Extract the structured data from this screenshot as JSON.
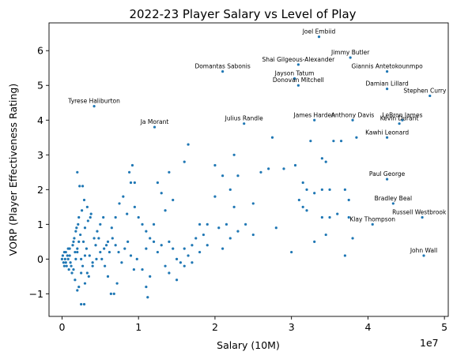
{
  "chart_data": {
    "type": "scatter",
    "title": "2022-23 Player Salary vs Level of Play",
    "xlabel": "Salary (10M)",
    "ylabel": "VORP (Player Effectiveness Rating)",
    "x_offset_text": "1e7",
    "xlim": [
      -1700000,
      50500000
    ],
    "ylim": [
      -1.65,
      6.8
    ],
    "xticks": [
      0,
      10000000,
      20000000,
      30000000,
      40000000,
      50000000
    ],
    "xtick_labels": [
      "0",
      "1",
      "2",
      "3",
      "4",
      "5"
    ],
    "yticks": [
      -1,
      0,
      1,
      2,
      3,
      4,
      5,
      6
    ],
    "ytick_labels": [
      "−1",
      "0",
      "1",
      "2",
      "3",
      "4",
      "5",
      "6"
    ],
    "grid": false,
    "point_color": "#1f77b4",
    "annotated_points": [
      {
        "label": "Joel Embiid",
        "x": 33600000,
        "y": 6.4
      },
      {
        "label": "Jimmy Butler",
        "x": 37700000,
        "y": 5.8
      },
      {
        "label": "Shai Gilgeous-Alexander",
        "x": 30900000,
        "y": 5.6
      },
      {
        "label": "Giannis Antetokounmpo",
        "x": 42500000,
        "y": 5.4
      },
      {
        "label": "Domantas Sabonis",
        "x": 21000000,
        "y": 5.4
      },
      {
        "label": "Jayson Tatum",
        "x": 30400000,
        "y": 5.2
      },
      {
        "label": "Donovan Mitchell",
        "x": 30900000,
        "y": 5.0
      },
      {
        "label": "Damian Lillard",
        "x": 42500000,
        "y": 4.9
      },
      {
        "label": "Stephen Curry",
        "x": 48100000,
        "y": 4.7
      },
      {
        "label": "Tyrese Haliburton",
        "x": 4200000,
        "y": 4.4
      },
      {
        "label": "James Harden",
        "x": 33000000,
        "y": 4.0
      },
      {
        "label": "Anthony Davis",
        "x": 38000000,
        "y": 4.0
      },
      {
        "label": "LeBron James",
        "x": 44500000,
        "y": 4.0
      },
      {
        "label": "Kevin Durant",
        "x": 44100000,
        "y": 3.9
      },
      {
        "label": "Julius Randle",
        "x": 23800000,
        "y": 3.9
      },
      {
        "label": "Ja Morant",
        "x": 12100000,
        "y": 3.8
      },
      {
        "label": "Kawhi Leonard",
        "x": 42500000,
        "y": 3.5
      },
      {
        "label": "Paul George",
        "x": 42500000,
        "y": 2.3
      },
      {
        "label": "Bradley Beal",
        "x": 43300000,
        "y": 1.6
      },
      {
        "label": "Russell Westbrook",
        "x": 47100000,
        "y": 1.2
      },
      {
        "label": "Klay Thompson",
        "x": 40600000,
        "y": 1.0
      },
      {
        "label": "John Wall",
        "x": 47300000,
        "y": 0.1
      }
    ],
    "points": [
      [
        16500000,
        3.3
      ],
      [
        27500000,
        3.5
      ],
      [
        32500000,
        3.4
      ],
      [
        34000000,
        2.9
      ],
      [
        34500000,
        2.8
      ],
      [
        35500000,
        3.4
      ],
      [
        36500000,
        3.4
      ],
      [
        38500000,
        3.5
      ],
      [
        26000000,
        2.5
      ],
      [
        27000000,
        2.6
      ],
      [
        29000000,
        2.6
      ],
      [
        30500000,
        2.7
      ],
      [
        31500000,
        2.2
      ],
      [
        32000000,
        2.0
      ],
      [
        33000000,
        1.9
      ],
      [
        34000000,
        2.0
      ],
      [
        35000000,
        2.0
      ],
      [
        37000000,
        2.0
      ],
      [
        37500000,
        1.7
      ],
      [
        31000000,
        1.7
      ],
      [
        31500000,
        1.5
      ],
      [
        32000000,
        1.4
      ],
      [
        34000000,
        1.2
      ],
      [
        35000000,
        1.2
      ],
      [
        36000000,
        1.3
      ],
      [
        37500000,
        1.2
      ],
      [
        38000000,
        0.6
      ],
      [
        33000000,
        0.5
      ],
      [
        34500000,
        0.7
      ],
      [
        37000000,
        0.1
      ],
      [
        30000000,
        0.2
      ],
      [
        28000000,
        0.9
      ],
      [
        25000000,
        1.6
      ],
      [
        20000000,
        2.7
      ],
      [
        21000000,
        2.4
      ],
      [
        22000000,
        2.0
      ],
      [
        20000000,
        1.8
      ],
      [
        21500000,
        1.0
      ],
      [
        22500000,
        1.5
      ],
      [
        19000000,
        1.0
      ],
      [
        20500000,
        0.9
      ],
      [
        18000000,
        1.0
      ],
      [
        18500000,
        0.7
      ],
      [
        17500000,
        0.6
      ],
      [
        17000000,
        0.4
      ],
      [
        16000000,
        0.3
      ],
      [
        16500000,
        0.1
      ],
      [
        15500000,
        -0.1
      ],
      [
        15000000,
        0.0
      ],
      [
        14500000,
        0.3
      ],
      [
        14000000,
        0.5
      ],
      [
        13500000,
        -0.2
      ],
      [
        13000000,
        0.4
      ],
      [
        12500000,
        0.2
      ],
      [
        12000000,
        0.5
      ],
      [
        11500000,
        0.6
      ],
      [
        11000000,
        0.8
      ],
      [
        10500000,
        1.0
      ],
      [
        10000000,
        1.2
      ],
      [
        9500000,
        1.5
      ],
      [
        9000000,
        2.2
      ],
      [
        8800000,
        2.5
      ],
      [
        9200000,
        2.7
      ],
      [
        9500000,
        2.2
      ],
      [
        8000000,
        1.8
      ],
      [
        7500000,
        1.6
      ],
      [
        13000000,
        1.9
      ],
      [
        12500000,
        2.2
      ],
      [
        14000000,
        2.5
      ],
      [
        14500000,
        1.7
      ],
      [
        13500000,
        1.4
      ],
      [
        12000000,
        1.0
      ],
      [
        11000000,
        0.3
      ],
      [
        10500000,
        -0.3
      ],
      [
        11500000,
        -0.5
      ],
      [
        11000000,
        -0.8
      ],
      [
        11200000,
        -1.1
      ],
      [
        14000000,
        -0.4
      ],
      [
        15000000,
        -0.6
      ],
      [
        16000000,
        -0.2
      ],
      [
        17000000,
        -0.1
      ],
      [
        18000000,
        0.2
      ],
      [
        19000000,
        0.4
      ],
      [
        21000000,
        0.3
      ],
      [
        22000000,
        0.6
      ],
      [
        23000000,
        0.8
      ],
      [
        24000000,
        1.0
      ],
      [
        25000000,
        0.7
      ],
      [
        23000000,
        2.4
      ],
      [
        22500000,
        3.0
      ],
      [
        16000000,
        2.8
      ],
      [
        8500000,
        1.3
      ],
      [
        7000000,
        1.2
      ],
      [
        6500000,
        0.9
      ],
      [
        6000000,
        0.5
      ],
      [
        5500000,
        0.3
      ],
      [
        5000000,
        0.2
      ],
      [
        4500000,
        0.0
      ],
      [
        4000000,
        -0.2
      ],
      [
        3500000,
        -0.5
      ],
      [
        3000000,
        -0.7
      ],
      [
        2500000,
        -0.4
      ],
      [
        2000000,
        0.2
      ],
      [
        1500000,
        0.5
      ],
      [
        1000000,
        0.1
      ],
      [
        500000,
        -0.1
      ],
      [
        0,
        0.0
      ],
      [
        300000,
        0.2
      ],
      [
        800000,
        0.3
      ],
      [
        1200000,
        -0.2
      ],
      [
        1800000,
        0.8
      ],
      [
        2200000,
        1.2
      ],
      [
        2600000,
        1.4
      ],
      [
        3000000,
        0.9
      ],
      [
        3400000,
        1.1
      ],
      [
        3800000,
        1.3
      ],
      [
        4200000,
        0.6
      ],
      [
        4600000,
        0.8
      ],
      [
        5000000,
        1.0
      ],
      [
        5400000,
        1.2
      ],
      [
        5800000,
        0.4
      ],
      [
        6200000,
        0.2
      ],
      [
        6600000,
        0.6
      ],
      [
        7000000,
        0.4
      ],
      [
        7400000,
        0.2
      ],
      [
        7800000,
        -0.1
      ],
      [
        8200000,
        0.3
      ],
      [
        8600000,
        0.5
      ],
      [
        9000000,
        0.1
      ],
      [
        9400000,
        -0.3
      ],
      [
        9800000,
        0.0
      ],
      [
        2000000,
        2.5
      ],
      [
        2300000,
        2.1
      ],
      [
        2700000,
        2.1
      ],
      [
        2900000,
        1.7
      ],
      [
        3300000,
        1.5
      ],
      [
        3700000,
        1.2
      ],
      [
        2500000,
        -1.3
      ],
      [
        2900000,
        -1.3
      ],
      [
        2000000,
        -0.9
      ],
      [
        2200000,
        -0.8
      ],
      [
        1700000,
        -0.6
      ],
      [
        1300000,
        -0.4
      ],
      [
        900000,
        -0.3
      ],
      [
        600000,
        -0.2
      ],
      [
        200000,
        -0.1
      ],
      [
        100000,
        0.1
      ],
      [
        400000,
        0.0
      ],
      [
        700000,
        0.1
      ],
      [
        1000000,
        0.3
      ],
      [
        1400000,
        0.4
      ],
      [
        1600000,
        0.6
      ],
      [
        1900000,
        0.9
      ],
      [
        2100000,
        1.0
      ],
      [
        2400000,
        0.7
      ],
      [
        2800000,
        0.5
      ],
      [
        3200000,
        0.3
      ],
      [
        3600000,
        0.1
      ],
      [
        4000000,
        -0.1
      ],
      [
        4400000,
        0.4
      ],
      [
        4800000,
        0.6
      ],
      [
        5200000,
        0.0
      ],
      [
        5600000,
        -0.2
      ],
      [
        6000000,
        -0.5
      ],
      [
        6400000,
        -1.0
      ],
      [
        6800000,
        -1.0
      ],
      [
        7200000,
        -0.7
      ],
      [
        1500000,
        -0.3
      ],
      [
        1800000,
        0.0
      ],
      [
        2000000,
        0.3
      ],
      [
        2200000,
        0.5
      ],
      [
        2500000,
        0.0
      ],
      [
        2700000,
        -0.2
      ],
      [
        3000000,
        0.1
      ],
      [
        3300000,
        -0.4
      ],
      [
        1700000,
        0.2
      ],
      [
        1100000,
        -0.1
      ],
      [
        800000,
        0.0
      ],
      [
        500000,
        0.2
      ],
      [
        300000,
        -0.2
      ]
    ]
  }
}
